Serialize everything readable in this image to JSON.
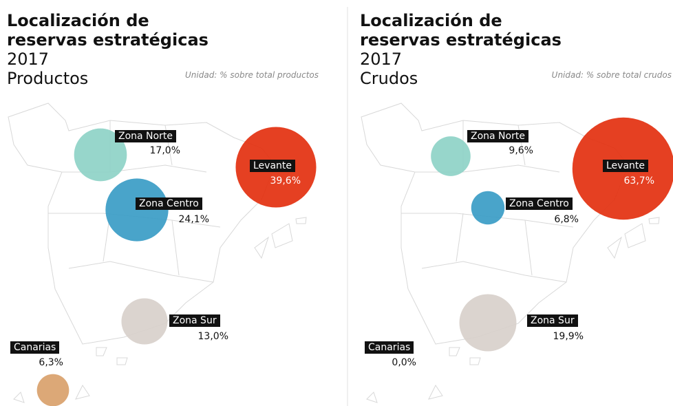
{
  "panels": [
    {
      "title": "Localización de reservas estratégicas",
      "year": "2017",
      "subtitle": "Productos",
      "unit": "Unidad: % sobre total productos",
      "regions": [
        {
          "name": "Zona Norte",
          "value": 17,
          "value_label": "17,0%",
          "color": "#8ed3c7"
        },
        {
          "name": "Zona Centro",
          "value": 24.1,
          "value_label": "24,1%",
          "color": "#3a9cc6"
        },
        {
          "name": "Levante",
          "value": 39.6,
          "value_label": "39,6%",
          "color": "#e3300f"
        },
        {
          "name": "Zona Sur",
          "value": 13,
          "value_label": "13,0%",
          "color": "#d8d0cb"
        },
        {
          "name": "Canarias",
          "value": 6.3,
          "value_label": "6,3%",
          "color": "#d9a16b"
        }
      ]
    },
    {
      "title": "Localización de reservas estratégicas",
      "year": "2017",
      "subtitle": "Crudos",
      "unit": "Unidad: % sobre total crudos",
      "regions": [
        {
          "name": "Zona Norte",
          "value": 9.6,
          "value_label": "9,6%",
          "color": "#8ed3c7"
        },
        {
          "name": "Zona Centro",
          "value": 6.8,
          "value_label": "6,8%",
          "color": "#3a9cc6"
        },
        {
          "name": "Levante",
          "value": 63.7,
          "value_label": "63,7%",
          "color": "#e3300f"
        },
        {
          "name": "Zona Sur",
          "value": 19.9,
          "value_label": "19,9%",
          "color": "#d8d0cb"
        },
        {
          "name": "Canarias",
          "value": 0,
          "value_label": "0,0%",
          "color": "#d9a16b"
        }
      ]
    }
  ]
}
